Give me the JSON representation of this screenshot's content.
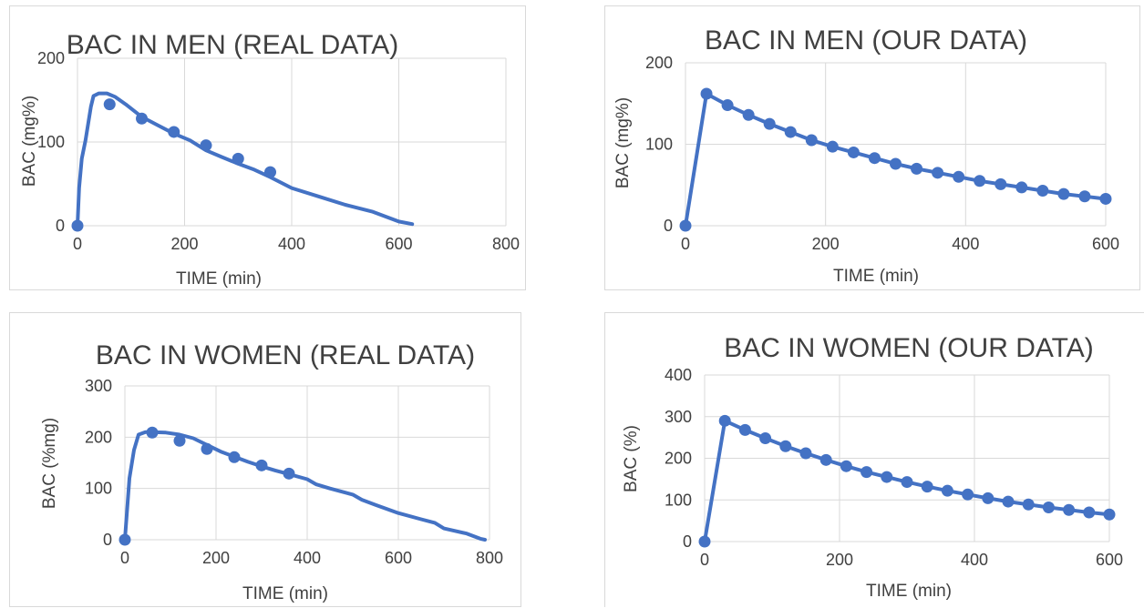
{
  "chart_data": [
    {
      "type": "scatter",
      "title": "BAC IN MEN (REAL DATA)",
      "xlabel": "TIME (min)",
      "ylabel": "BAC (mg%)",
      "xlim": [
        0,
        800
      ],
      "ylim": [
        0,
        200
      ],
      "xticks": [
        0,
        200,
        400,
        600,
        800
      ],
      "yticks": [
        0,
        100,
        200
      ],
      "grid": true,
      "color": "#4472c4",
      "series": [
        {
          "mode": "line",
          "x": [
            0,
            3,
            8,
            15,
            25,
            30,
            40,
            55,
            70,
            90,
            120,
            150,
            180,
            210,
            240,
            270,
            300,
            330,
            360,
            400,
            450,
            500,
            550,
            600,
            625
          ],
          "y": [
            0,
            45,
            80,
            102,
            142,
            155,
            158,
            158,
            154,
            145,
            130,
            120,
            110,
            102,
            90,
            82,
            74,
            67,
            58,
            45,
            35,
            25,
            17,
            5,
            2
          ]
        },
        {
          "mode": "markers",
          "x": [
            0,
            60,
            120,
            180,
            240,
            300,
            360
          ],
          "y": [
            0,
            145,
            128,
            112,
            96,
            80,
            64
          ]
        }
      ]
    },
    {
      "type": "scatter",
      "title": "BAC IN MEN (OUR DATA)",
      "xlabel": "TIME (min)",
      "ylabel": "BAC (mg%)",
      "xlim": [
        0,
        600
      ],
      "ylim": [
        0,
        200
      ],
      "xticks": [
        0,
        200,
        400,
        600
      ],
      "yticks": [
        0,
        100,
        200
      ],
      "grid": true,
      "color": "#4472c4",
      "series": [
        {
          "mode": "lines+markers",
          "x": [
            0,
            30,
            60,
            90,
            120,
            150,
            180,
            210,
            240,
            270,
            300,
            330,
            360,
            390,
            420,
            450,
            480,
            510,
            540,
            570,
            600
          ],
          "y": [
            0,
            162,
            148,
            136,
            125,
            115,
            105,
            97,
            90,
            83,
            76,
            70,
            65,
            60,
            55,
            51,
            47,
            43,
            39,
            36,
            33
          ]
        }
      ]
    },
    {
      "type": "scatter",
      "title": "BAC IN WOMEN (REAL DATA)",
      "xlabel": "TIME (min)",
      "ylabel": "BAC (%mg)",
      "xlim": [
        0,
        800
      ],
      "ylim": [
        0,
        300
      ],
      "xticks": [
        0,
        200,
        400,
        600,
        800
      ],
      "yticks": [
        0,
        100,
        200,
        300
      ],
      "grid": true,
      "color": "#4472c4",
      "series": [
        {
          "mode": "line",
          "x": [
            0,
            5,
            10,
            20,
            30,
            45,
            60,
            90,
            120,
            150,
            180,
            210,
            240,
            270,
            300,
            330,
            360,
            400,
            420,
            450,
            500,
            520,
            550,
            600,
            650,
            680,
            700,
            750,
            780,
            790
          ],
          "y": [
            0,
            60,
            120,
            175,
            205,
            210,
            210,
            209,
            205,
            198,
            185,
            172,
            162,
            152,
            143,
            135,
            128,
            118,
            108,
            100,
            88,
            78,
            68,
            52,
            40,
            33,
            22,
            12,
            2,
            0
          ]
        },
        {
          "mode": "markers",
          "x": [
            0,
            60,
            120,
            180,
            240,
            300,
            360
          ],
          "y": [
            0,
            209,
            193,
            177,
            161,
            145,
            129
          ]
        }
      ]
    },
    {
      "type": "scatter",
      "title": "BAC IN WOMEN (OUR DATA)",
      "xlabel": "TIME (min)",
      "ylabel": "BAC (%)",
      "xlim": [
        0,
        600
      ],
      "ylim": [
        0,
        400
      ],
      "xticks": [
        0,
        200,
        400,
        600
      ],
      "yticks": [
        0,
        100,
        200,
        300,
        400
      ],
      "grid": true,
      "color": "#4472c4",
      "series": [
        {
          "mode": "lines+markers",
          "x": [
            0,
            30,
            60,
            90,
            120,
            150,
            180,
            210,
            240,
            270,
            300,
            330,
            360,
            390,
            420,
            450,
            480,
            510,
            540,
            570,
            600
          ],
          "y": [
            0,
            290,
            268,
            248,
            229,
            212,
            196,
            181,
            167,
            155,
            143,
            132,
            122,
            113,
            104,
            96,
            89,
            82,
            76,
            70,
            65
          ]
        }
      ]
    }
  ]
}
